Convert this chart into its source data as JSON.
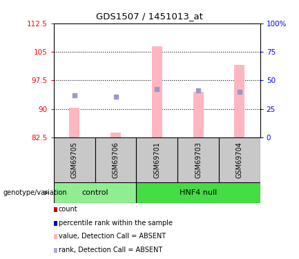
{
  "title": "GDS1507 / 1451013_at",
  "samples": [
    "GSM69705",
    "GSM69706",
    "GSM69701",
    "GSM69703",
    "GSM69704"
  ],
  "ylim_left": [
    82.5,
    112.5
  ],
  "ylim_right": [
    0,
    100
  ],
  "yticks_left": [
    82.5,
    90.0,
    97.5,
    105.0,
    112.5
  ],
  "ytick_labels_left": [
    "82.5",
    "90",
    "97.5",
    "105",
    "112.5"
  ],
  "yticks_right": [
    0,
    25,
    50,
    75,
    100
  ],
  "ytick_labels_right": [
    "0",
    "25",
    "50",
    "75",
    "100%"
  ],
  "grid_lines": [
    90.0,
    97.5,
    105.0
  ],
  "pink_bars": {
    "GSM69705": [
      82.5,
      90.3
    ],
    "GSM69706": [
      82.5,
      83.8
    ],
    "GSM69701": [
      82.5,
      106.5
    ],
    "GSM69703": [
      82.5,
      94.5
    ],
    "GSM69704": [
      82.5,
      101.5
    ]
  },
  "blue_dots": {
    "GSM69705": 93.5,
    "GSM69706": 93.2,
    "GSM69701": 95.2,
    "GSM69703": 94.8,
    "GSM69704": 94.5
  },
  "pink_bar_color": "#FFB6C1",
  "blue_dot_color": "#9999CC",
  "control_samples": [
    0,
    1
  ],
  "hnf4_samples": [
    2,
    3,
    4
  ],
  "control_color": "#90EE90",
  "hnf4_color": "#44DD44",
  "label_bg_color": "#C8C8C8",
  "legend_items": [
    {
      "color": "#CC0000",
      "label": "count"
    },
    {
      "color": "#0000CC",
      "label": "percentile rank within the sample"
    },
    {
      "color": "#FFB6C1",
      "label": "value, Detection Call = ABSENT"
    },
    {
      "color": "#AAAADD",
      "label": "rank, Detection Call = ABSENT"
    }
  ]
}
